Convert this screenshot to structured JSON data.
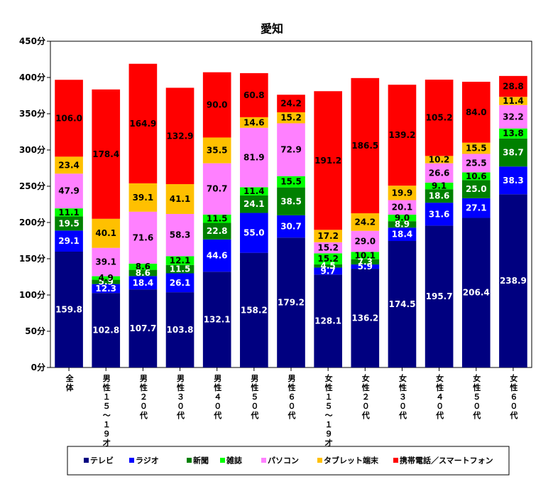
{
  "chart_data": {
    "type": "bar",
    "stacked": true,
    "title": "愛知",
    "categories": [
      "全体",
      "男性15~19才",
      "男性20代",
      "男性30代",
      "男性40代",
      "男性50代",
      "男性60代",
      "女性15~19才",
      "女性20代",
      "女性30代",
      "女性40代",
      "女性50代",
      "女性60代"
    ],
    "category_labels_vertical": [
      "全体",
      "男性１５～１９才",
      "男性２０代",
      "男性３０代",
      "男性４０代",
      "男性５０代",
      "男性６０代",
      "女性１５～１９才",
      "女性２０代",
      "女性３０代",
      "女性４０代",
      "女性５０代",
      "女性６０代"
    ],
    "y_ticks": [
      "0分",
      "50分",
      "100分",
      "150分",
      "200分",
      "250分",
      "300分",
      "350分",
      "400分",
      "450分"
    ],
    "ylim": [
      0,
      450
    ],
    "grid": false,
    "legend_position": "bottom",
    "series": [
      {
        "name": "テレビ",
        "color": "#000080",
        "label_color": "#ffffff",
        "values": [
          159.8,
          102.8,
          107.7,
          103.8,
          132.1,
          158.2,
          179.2,
          128.1,
          136.2,
          174.5,
          195.7,
          206.4,
          238.9
        ]
      },
      {
        "name": "ラジオ",
        "color": "#0000ff",
        "label_color": "#ffffff",
        "values": [
          29.1,
          12.3,
          18.4,
          26.1,
          44.6,
          55.0,
          30.7,
          9.7,
          5.9,
          18.4,
          31.6,
          27.1,
          38.3
        ]
      },
      {
        "name": "新聞",
        "color": "#008000",
        "label_color": "#ffffff",
        "values": [
          19.5,
          5.9,
          8.6,
          11.5,
          22.8,
          24.1,
          38.5,
          4.5,
          7.3,
          8.9,
          18.6,
          25.0,
          38.7
        ]
      },
      {
        "name": "雑誌",
        "color": "#00ff00",
        "label_color": "#000000",
        "values": [
          11.1,
          4.9,
          8.6,
          12.1,
          11.5,
          11.4,
          15.5,
          15.2,
          10.1,
          9.0,
          9.1,
          10.6,
          13.8
        ]
      },
      {
        "name": "パソコン",
        "color": "#ff80ff",
        "label_color": "#000000",
        "values": [
          47.9,
          39.1,
          71.6,
          58.3,
          70.7,
          81.9,
          72.9,
          15.2,
          29.0,
          20.1,
          26.6,
          25.5,
          32.2
        ]
      },
      {
        "name": "タブレット端末",
        "color": "#ffc000",
        "label_color": "#000000",
        "values": [
          23.4,
          40.1,
          39.1,
          41.1,
          35.5,
          14.6,
          15.2,
          17.2,
          24.2,
          19.9,
          10.2,
          15.5,
          11.4
        ]
      },
      {
        "name": "携帯電話／スマートフォン",
        "color": "#ff0000",
        "label_color": "#000000",
        "values": [
          106.0,
          178.4,
          164.9,
          132.9,
          90.0,
          60.8,
          24.2,
          191.2,
          186.5,
          139.2,
          105.2,
          84.0,
          28.8
        ]
      }
    ]
  }
}
